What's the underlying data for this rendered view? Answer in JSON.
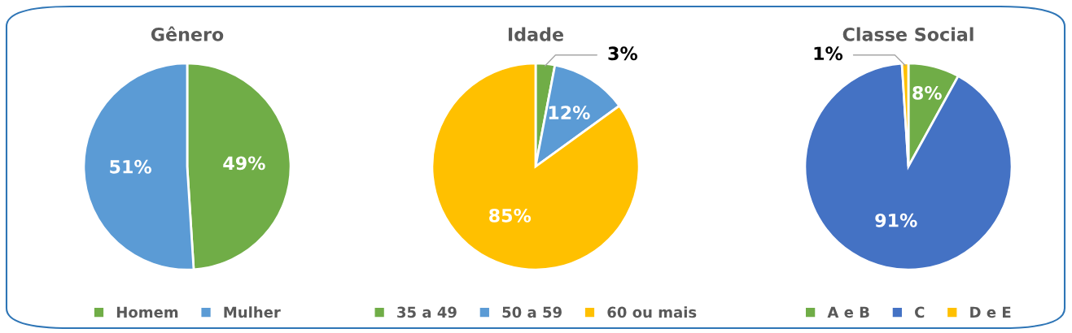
{
  "chart_data": [
    {
      "type": "pie",
      "title": "Gênero",
      "categories": [
        "Homem",
        "Mulher"
      ],
      "values": [
        49,
        51
      ],
      "colors": [
        "#70ad47",
        "#5b9bd5"
      ],
      "value_labels": [
        "49%",
        "51%"
      ],
      "legend": "bottom"
    },
    {
      "type": "pie",
      "title": "Idade",
      "categories": [
        "35 a 49",
        "50 a 59",
        "60 ou mais"
      ],
      "values": [
        3,
        12,
        85
      ],
      "colors": [
        "#70ad47",
        "#5b9bd5",
        "#ffc000"
      ],
      "value_labels": [
        "3%",
        "12%",
        "85%"
      ],
      "legend": "bottom"
    },
    {
      "type": "pie",
      "title": "Classe Social",
      "categories": [
        "A e B",
        "C",
        "D e E"
      ],
      "values": [
        8,
        91,
        1
      ],
      "colors": [
        "#70ad47",
        "#4472c4",
        "#ffc000"
      ],
      "value_labels": [
        "8%",
        "91%",
        "1%"
      ],
      "legend": "bottom"
    }
  ]
}
